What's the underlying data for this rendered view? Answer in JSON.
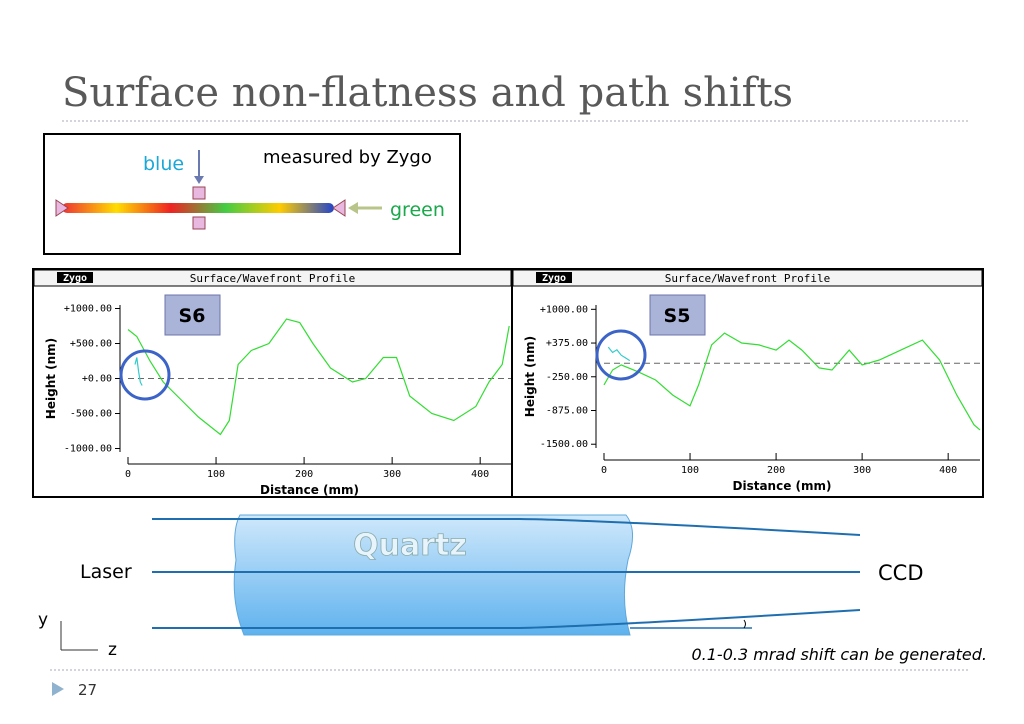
{
  "title": "Surface non-flatness and path shifts",
  "inset": {
    "blue": "blue",
    "measured": "measured by Zygo",
    "green": "green"
  },
  "charts": [
    {
      "type": "line",
      "header_logo": "Zygo",
      "title": "Surface/Wavefront Profile",
      "tag": "S6",
      "x_label": "Distance (mm)",
      "y_label": "Height (nm)",
      "xlim": [
        0,
        435
      ],
      "xticks": [
        0,
        100,
        200,
        300,
        400
      ],
      "ylim": [
        -1050,
        1050
      ],
      "yticks": [
        {
          "value": -1000,
          "label": "-1000.00"
        },
        {
          "value": -500,
          "label": "-500.00"
        },
        {
          "value": 0,
          "label": "+0.00"
        },
        {
          "value": 500,
          "label": "+500.00"
        },
        {
          "value": 1000,
          "label": "+1000.00"
        }
      ],
      "reference_line": 0,
      "series": [
        {
          "color": "#33dd33",
          "x": [
            0,
            10,
            25,
            40,
            60,
            80,
            100,
            105,
            115,
            125,
            140,
            160,
            180,
            195,
            210,
            230,
            255,
            270,
            290,
            305,
            320,
            345,
            370,
            395,
            410,
            425,
            433
          ],
          "values": [
            700,
            600,
            250,
            -50,
            -300,
            -550,
            -750,
            -800,
            -600,
            200,
            400,
            500,
            850,
            800,
            500,
            150,
            -50,
            0,
            300,
            300,
            -250,
            -500,
            -600,
            -400,
            -50,
            200,
            750
          ]
        },
        {
          "color": "#33cccc",
          "x": [
            8,
            10,
            12,
            14,
            16
          ],
          "values": [
            200,
            300,
            100,
            -50,
            -100
          ]
        }
      ]
    },
    {
      "type": "line",
      "header_logo": "Zygo",
      "title": "Surface/Wavefront Profile",
      "tag": "S5",
      "x_label": "Distance (mm)",
      "y_label": "Height (nm)",
      "xlim": [
        0,
        437
      ],
      "xticks": [
        0,
        100,
        200,
        300,
        400
      ],
      "ylim": [
        -1570,
        1080
      ],
      "yticks": [
        {
          "value": -1500,
          "label": "-1500.00"
        },
        {
          "value": -875,
          "label": "-875.00"
        },
        {
          "value": -250,
          "label": "-250.00"
        },
        {
          "value": 375,
          "label": "+375.00"
        },
        {
          "value": 1000,
          "label": "+1000.00"
        }
      ],
      "reference_line": 0,
      "series": [
        {
          "color": "#33dd33",
          "x": [
            0,
            10,
            20,
            40,
            60,
            80,
            100,
            110,
            125,
            140,
            160,
            180,
            200,
            215,
            230,
            250,
            265,
            285,
            300,
            320,
            345,
            370,
            390,
            410,
            430,
            437
          ],
          "values": [
            -400,
            -125,
            -30,
            -160,
            -310,
            -590,
            -790,
            -400,
            340,
            560,
            375,
            340,
            245,
            430,
            245,
            -85,
            -125,
            245,
            -30,
            60,
            245,
            430,
            60,
            -590,
            -1140,
            -1235
          ]
        },
        {
          "color": "#33cccc",
          "x": [
            5,
            10,
            15,
            20,
            25,
            30
          ],
          "values": [
            300,
            200,
            250,
            150,
            100,
            50
          ]
        }
      ]
    }
  ],
  "diagram": {
    "material": "Quartz",
    "source": "Laser",
    "detector": "CCD",
    "axis_y": "y",
    "axis_z": "z",
    "note": "0.1-0.3 mrad shift can be generated."
  },
  "page_number": "27"
}
